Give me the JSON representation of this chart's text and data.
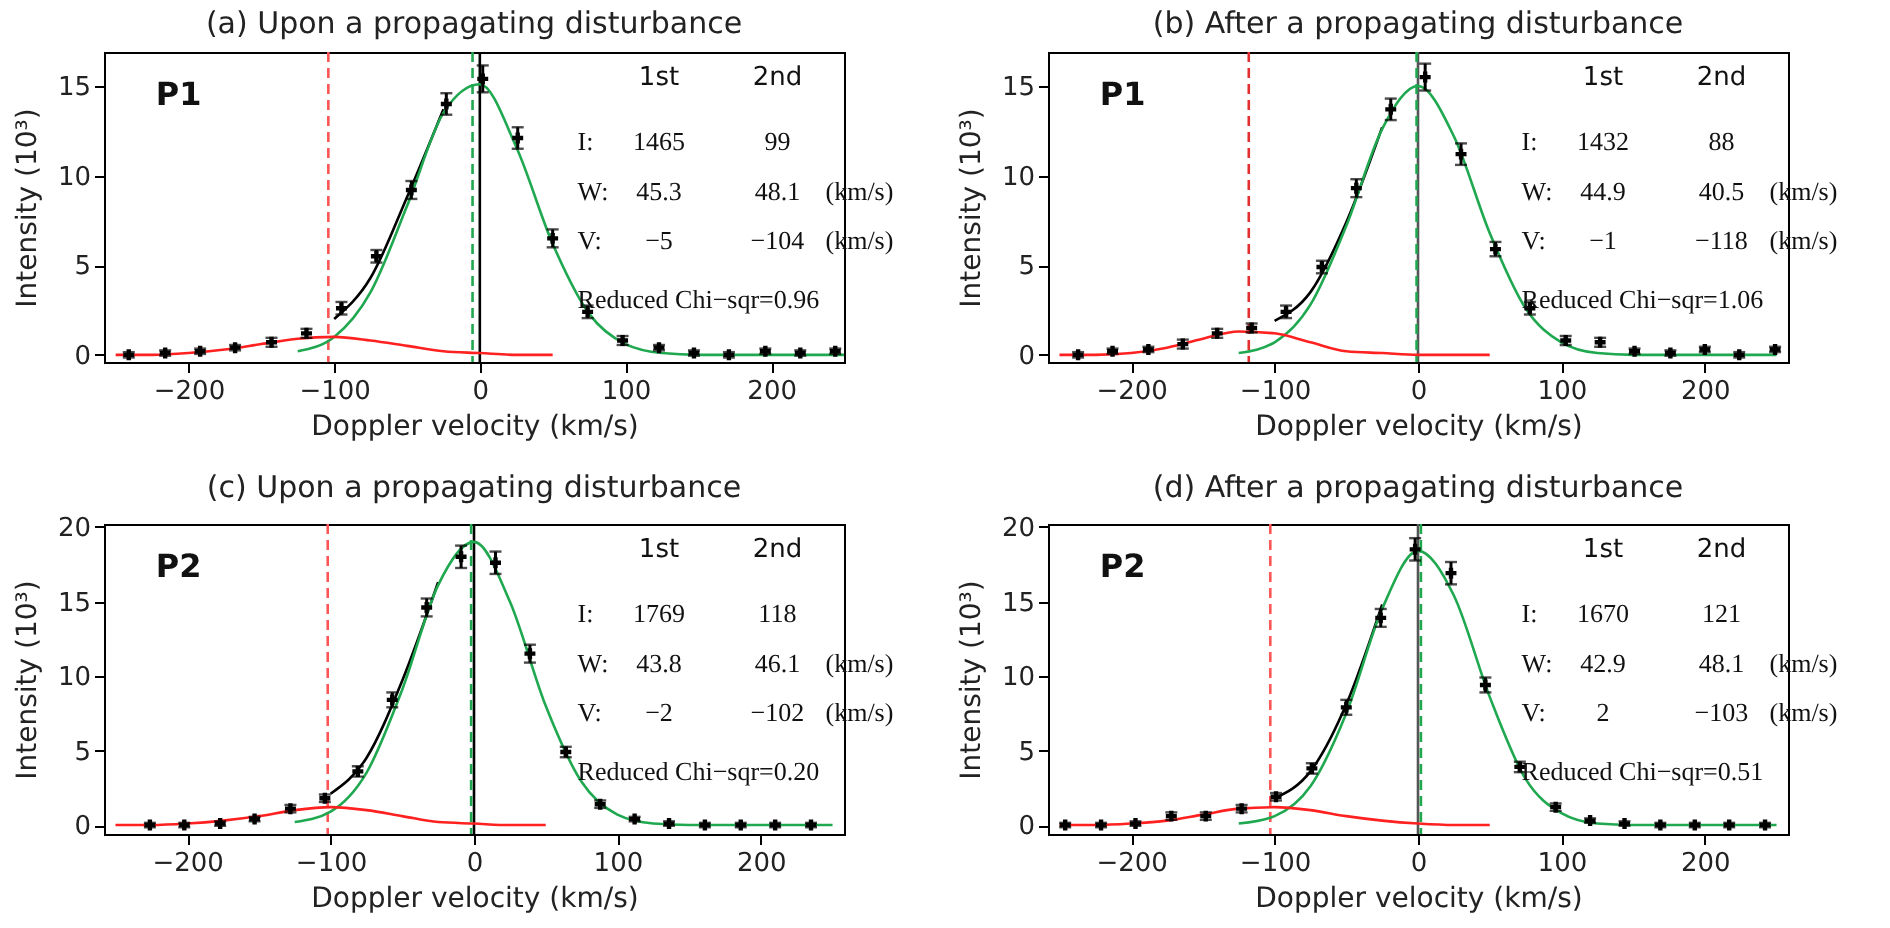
{
  "chart_data": [
    {
      "type": "scatter",
      "title": "(a) Upon a propagating disturbance",
      "xlabel": "Doppler velocity (km/s)",
      "ylabel": "Intensity (10³)",
      "xlim": [
        -258,
        250
      ],
      "ylim": [
        -0.4,
        16.9
      ],
      "xticks": [
        -200,
        -100,
        0,
        100,
        200
      ],
      "yticks": [
        0,
        5,
        10,
        15
      ],
      "ref_lines": [
        {
          "axis": "x",
          "value": 0,
          "color": "#000000",
          "line_style": "solid"
        },
        {
          "axis": "x",
          "value": -104,
          "color": "#ff5555",
          "line_style": "dashed"
        },
        {
          "axis": "x",
          "value": -5,
          "color": "#1fa84f",
          "line_style": "dashed"
        }
      ],
      "series": [
        {
          "type": "line",
          "color": "#000000",
          "x": [
            -100,
            -75,
            -50,
            -25
          ],
          "values": [
            2.0,
            4.3,
            8.8,
            13.7
          ]
        },
        {
          "type": "line",
          "color": "#1fa84f",
          "x": [
            -125,
            -100,
            -75,
            -50,
            -25,
            0,
            25,
            50,
            75,
            100,
            125,
            150,
            175,
            200,
            225,
            250
          ],
          "values": [
            0.2,
            1.0,
            3.5,
            8.3,
            13.5,
            15.1,
            11.6,
            6.2,
            2.3,
            0.6,
            0.1,
            0,
            0,
            0,
            0,
            0
          ]
        },
        {
          "type": "line",
          "color": "#ff2020",
          "x": [
            -250,
            -225,
            -200,
            -175,
            -150,
            -125,
            -100,
            -75,
            -50,
            -25,
            0,
            25,
            50
          ],
          "values": [
            0,
            0,
            0.1,
            0.3,
            0.6,
            0.9,
            1.0,
            0.8,
            0.5,
            0.2,
            0.1,
            0,
            0
          ]
        },
        {
          "color": "#000000",
          "marker": "cross",
          "x": [
            -241,
            -216,
            -192,
            -168,
            -143,
            -119,
            -95,
            -71,
            -47,
            -23,
            2,
            26,
            50,
            74,
            98,
            123,
            147,
            171,
            196,
            220,
            244
          ],
          "values": [
            0,
            0.1,
            0.2,
            0.4,
            0.7,
            1.2,
            2.6,
            5.5,
            9.2,
            14.0,
            15.4,
            12.1,
            6.5,
            2.4,
            0.8,
            0.4,
            0.1,
            0,
            0.2,
            0.1,
            0.2
          ],
          "errors": [
            0.15,
            0.15,
            0.15,
            0.15,
            0.25,
            0.25,
            0.35,
            0.35,
            0.5,
            0.6,
            0.75,
            0.6,
            0.5,
            0.35,
            0.25,
            0.15,
            0.15,
            0.15,
            0.15,
            0.15,
            0.15
          ]
        }
      ],
      "annotations": [
        "P1",
        "1st",
        "2nd",
        "I:",
        "1465",
        "99",
        "W:",
        "45.3",
        "48.1",
        "(km/s)",
        "V:",
        "−5",
        "−104",
        "(km/s)",
        "Reduced Chi−sqr=0.96"
      ]
    },
    {
      "type": "scatter",
      "title": "(b) After a propagating disturbance",
      "xlabel": "Doppler velocity (km/s)",
      "ylabel": "Intensity (10³)",
      "xlim": [
        -258,
        258
      ],
      "ylim": [
        -0.4,
        16.9
      ],
      "xticks": [
        -200,
        -100,
        0,
        100,
        200
      ],
      "yticks": [
        0,
        5,
        10,
        15
      ],
      "ref_lines": [
        {
          "axis": "x",
          "value": 0,
          "color": "#555555",
          "line_style": "solid"
        },
        {
          "axis": "x",
          "value": -118,
          "color": "#e03030",
          "line_style": "dashed"
        },
        {
          "axis": "x",
          "value": -1,
          "color": "#1fa84f",
          "line_style": "dashed"
        }
      ],
      "series": [
        {
          "type": "line",
          "color": "#000000",
          "x": [
            -100,
            -75,
            -50,
            -25
          ],
          "values": [
            1.9,
            3.5,
            7.4,
            12.7
          ]
        },
        {
          "type": "line",
          "color": "#1fa84f",
          "x": [
            -125,
            -100,
            -75,
            -50,
            -25,
            0,
            25,
            50,
            75,
            100,
            125,
            150,
            175,
            200,
            225,
            250
          ],
          "values": [
            0.1,
            0.7,
            2.8,
            7.2,
            12.6,
            15.0,
            12.2,
            6.8,
            2.6,
            0.7,
            0.1,
            0,
            0,
            0,
            0,
            0
          ]
        },
        {
          "type": "line",
          "color": "#ff2020",
          "x": [
            -250,
            -225,
            -200,
            -175,
            -150,
            -125,
            -100,
            -75,
            -50,
            -25,
            0,
            25,
            50
          ],
          "values": [
            0,
            0,
            0.1,
            0.4,
            0.9,
            1.3,
            1.2,
            0.7,
            0.2,
            0.1,
            0,
            0,
            0
          ]
        },
        {
          "color": "#000000",
          "marker": "cross",
          "x": [
            -237,
            -213,
            -188,
            -164,
            -140,
            -116,
            -92,
            -67,
            -43,
            -19,
            5,
            30,
            54,
            78,
            103,
            127,
            151,
            176,
            200,
            224,
            249
          ],
          "values": [
            0,
            0.2,
            0.3,
            0.6,
            1.2,
            1.5,
            2.4,
            4.9,
            9.3,
            13.7,
            15.5,
            11.2,
            5.9,
            2.6,
            0.8,
            0.7,
            0.2,
            0.1,
            0.3,
            0,
            0.3
          ],
          "errors": [
            0.15,
            0.15,
            0.15,
            0.25,
            0.25,
            0.25,
            0.35,
            0.35,
            0.5,
            0.6,
            0.75,
            0.6,
            0.4,
            0.35,
            0.25,
            0.25,
            0.15,
            0.15,
            0.15,
            0.15,
            0.15
          ]
        }
      ],
      "annotations": [
        "P1",
        "1st",
        "2nd",
        "I:",
        "1432",
        "88",
        "W:",
        "44.9",
        "40.5",
        "(km/s)",
        "V:",
        "−1",
        "−118",
        "(km/s)",
        "Reduced Chi−sqr=1.06"
      ]
    },
    {
      "type": "scatter",
      "title": "(c) Upon a propagating disturbance",
      "xlabel": "Doppler velocity (km/s)",
      "ylabel": "Intensity (10³)",
      "xlim": [
        -258,
        258
      ],
      "ylim": [
        -0.6,
        20.2
      ],
      "xticks": [
        -200,
        -100,
        0,
        100,
        200
      ],
      "yticks": [
        0,
        5,
        10,
        15,
        20
      ],
      "ref_lines": [
        {
          "axis": "x",
          "value": 0,
          "color": "#000000",
          "line_style": "solid"
        },
        {
          "axis": "x",
          "value": -102,
          "color": "#ff5555",
          "line_style": "dashed"
        },
        {
          "axis": "x",
          "value": -2,
          "color": "#1fa84f",
          "line_style": "dashed"
        }
      ],
      "series": [
        {
          "type": "line",
          "color": "#000000",
          "x": [
            -100,
            -75,
            -50,
            -25
          ],
          "values": [
            2.1,
            4.5,
            9.7,
            16.3
          ]
        },
        {
          "type": "line",
          "color": "#1fa84f",
          "x": [
            -125,
            -100,
            -75,
            -50,
            -25,
            0,
            25,
            50,
            75,
            100,
            125,
            150,
            175,
            200,
            225,
            250
          ],
          "values": [
            0.2,
            0.9,
            3.5,
            9.1,
            16.1,
            19.0,
            15.0,
            8.0,
            2.9,
            0.7,
            0.1,
            0,
            0,
            0,
            0,
            0
          ]
        },
        {
          "type": "line",
          "color": "#ff2020",
          "x": [
            -250,
            -225,
            -200,
            -175,
            -150,
            -125,
            -100,
            -75,
            -50,
            -25,
            0,
            25,
            50
          ],
          "values": [
            0,
            0,
            0.1,
            0.3,
            0.6,
            1.0,
            1.2,
            1.0,
            0.6,
            0.2,
            0.1,
            0,
            0
          ]
        },
        {
          "color": "#000000",
          "marker": "cross",
          "x": [
            -226,
            -202,
            -177,
            -153,
            -128,
            -104,
            -81,
            -57,
            -33,
            -9,
            15,
            39,
            64,
            88,
            112,
            136,
            161,
            186,
            210,
            235
          ],
          "values": [
            0,
            0,
            0.1,
            0.4,
            1.1,
            1.8,
            3.6,
            8.4,
            14.6,
            18.0,
            17.6,
            11.5,
            4.9,
            1.4,
            0.4,
            0.1,
            0,
            0,
            0,
            0
          ],
          "errors": [
            0.15,
            0.15,
            0.15,
            0.15,
            0.25,
            0.25,
            0.35,
            0.5,
            0.6,
            0.75,
            0.75,
            0.6,
            0.35,
            0.25,
            0.15,
            0.15,
            0.15,
            0.15,
            0.15,
            0.15
          ]
        }
      ],
      "annotations": [
        "P2",
        "1st",
        "2nd",
        "I:",
        "1769",
        "118",
        "W:",
        "43.8",
        "46.1",
        "(km/s)",
        "V:",
        "−2",
        "−102",
        "(km/s)",
        "Reduced Chi−sqr=0.20"
      ]
    },
    {
      "type": "scatter",
      "title": "(d) After a propagating disturbance",
      "xlabel": "Doppler velocity (km/s)",
      "ylabel": "Intensity (10³)",
      "xlim": [
        -258,
        258
      ],
      "ylim": [
        -0.6,
        20.2
      ],
      "xticks": [
        -200,
        -100,
        0,
        100,
        200
      ],
      "yticks": [
        0,
        5,
        10,
        15,
        20
      ],
      "ref_lines": [
        {
          "axis": "x",
          "value": 0,
          "color": "#555555",
          "line_style": "solid"
        },
        {
          "axis": "x",
          "value": -103,
          "color": "#ff5555",
          "line_style": "dashed"
        },
        {
          "axis": "x",
          "value": 2,
          "color": "#1fa84f",
          "line_style": "dashed"
        }
      ],
      "series": [
        {
          "type": "line",
          "color": "#000000",
          "x": [
            -100,
            -75,
            -50,
            -25
          ],
          "values": [
            1.8,
            3.6,
            8.1,
            14.8
          ]
        },
        {
          "type": "line",
          "color": "#1fa84f",
          "x": [
            -125,
            -100,
            -75,
            -50,
            -25,
            0,
            25,
            50,
            75,
            100,
            125,
            150,
            175,
            200,
            225,
            250
          ],
          "values": [
            0.1,
            0.6,
            2.6,
            7.5,
            14.5,
            18.4,
            15.4,
            8.6,
            3.1,
            0.8,
            0.1,
            0,
            0,
            0,
            0,
            0
          ]
        },
        {
          "type": "line",
          "color": "#ff2020",
          "x": [
            -250,
            -225,
            -200,
            -175,
            -150,
            -125,
            -100,
            -75,
            -50,
            -25,
            0,
            25,
            50
          ],
          "values": [
            0,
            0,
            0.1,
            0.3,
            0.7,
            1.1,
            1.2,
            1.0,
            0.6,
            0.3,
            0.1,
            0,
            0
          ]
        },
        {
          "color": "#000000",
          "marker": "cross",
          "x": [
            -246,
            -221,
            -197,
            -172,
            -148,
            -123,
            -99,
            -74,
            -50,
            -26,
            -2,
            23,
            47,
            71,
            96,
            120,
            144,
            169,
            193,
            217,
            242
          ],
          "values": [
            0,
            0,
            0.1,
            0.6,
            0.6,
            1.1,
            1.9,
            3.8,
            7.9,
            13.9,
            18.5,
            16.9,
            9.4,
            3.9,
            1.2,
            0.3,
            0.1,
            0,
            0,
            0,
            0
          ],
          "errors": [
            0.15,
            0.15,
            0.15,
            0.25,
            0.25,
            0.25,
            0.25,
            0.35,
            0.5,
            0.6,
            0.75,
            0.75,
            0.5,
            0.35,
            0.25,
            0.15,
            0.15,
            0.15,
            0.15,
            0.15,
            0.15
          ]
        }
      ],
      "annotations": [
        "P2",
        "1st",
        "2nd",
        "I:",
        "1670",
        "121",
        "W:",
        "42.9",
        "48.1",
        "(km/s)",
        "V:",
        "2",
        "−103",
        "(km/s)",
        "Reduced Chi−sqr=0.51"
      ]
    }
  ]
}
